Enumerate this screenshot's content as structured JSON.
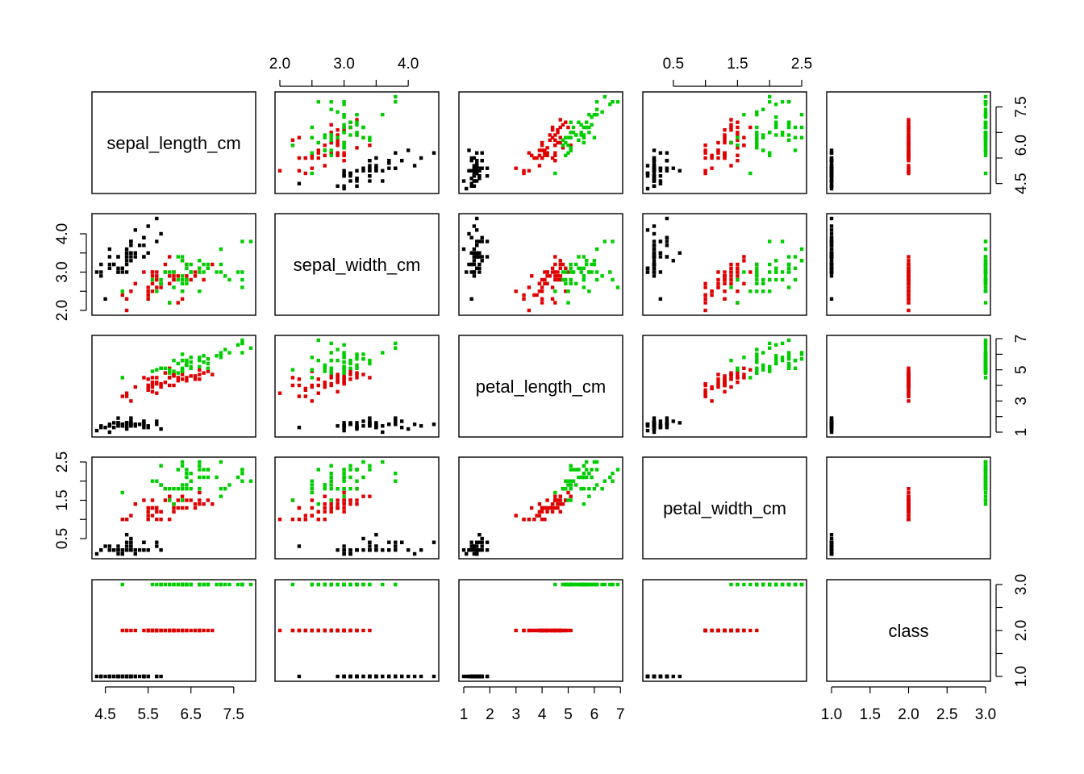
{
  "chart_data": {
    "type": "scatter",
    "chart_kind": "scatterplot-matrix",
    "variables": [
      "sepal_length_cm",
      "sepal_width_cm",
      "petal_length_cm",
      "petal_width_cm",
      "class"
    ],
    "groups": [
      {
        "class_value": 1,
        "color": "#000000"
      },
      {
        "class_value": 2,
        "color": "#DF0000"
      },
      {
        "class_value": 3,
        "color": "#00CD00"
      }
    ],
    "axis_ranges": {
      "sepal_length_cm": [
        4.3,
        7.9
      ],
      "sepal_width_cm": [
        2.0,
        4.4
      ],
      "petal_length_cm": [
        1.0,
        6.9
      ],
      "petal_width_cm": [
        0.1,
        2.5
      ],
      "class": [
        1.0,
        3.0
      ]
    },
    "tick_values": {
      "sepal_length_cm": [
        4.5,
        5.5,
        6.5,
        7.5
      ],
      "sepal_width_cm": [
        2.0,
        2.5,
        3.0,
        3.5,
        4.0
      ],
      "petal_length_cm": [
        1,
        2,
        3,
        4,
        5,
        6,
        7
      ],
      "petal_width_cm": [
        0.5,
        1.0,
        1.5,
        2.0,
        2.5
      ],
      "class": [
        1.0,
        1.5,
        2.0,
        2.5,
        3.0
      ]
    },
    "tick_labels": {
      "sepal_length_cm": {
        "bottom": [
          "4.5",
          "5.5",
          "6.5",
          "7.5"
        ],
        "right": [
          "4.5",
          "6.0",
          "7.5"
        ],
        "right_values": [
          4.5,
          6.0,
          7.5
        ]
      },
      "sepal_width_cm": {
        "top": [
          "2.0",
          "3.0",
          "4.0"
        ],
        "top_values": [
          2.0,
          3.0,
          4.0
        ],
        "left": [
          "2.0",
          "3.0",
          "4.0"
        ],
        "left_values": [
          2.0,
          3.0,
          4.0
        ]
      },
      "petal_length_cm": {
        "bottom": [
          "1",
          "2",
          "3",
          "4",
          "5",
          "6",
          "7"
        ],
        "right": [
          "1",
          "3",
          "5",
          "7"
        ],
        "right_values": [
          1,
          3,
          5,
          7
        ]
      },
      "petal_width_cm": {
        "top": [
          "0.5",
          "1.5",
          "2.5"
        ],
        "top_values": [
          0.5,
          1.5,
          2.5
        ],
        "left": [
          "0.5",
          "1.5",
          "2.5"
        ],
        "left_values": [
          0.5,
          1.5,
          2.5
        ]
      },
      "class": {
        "bottom": [
          "1.0",
          "1.5",
          "2.0",
          "2.5",
          "3.0"
        ],
        "right": [
          "1.0",
          "2.0",
          "3.0"
        ],
        "right_values": [
          1.0,
          2.0,
          3.0
        ]
      }
    },
    "records": [
      [
        5.1,
        3.5,
        1.4,
        0.2,
        1
      ],
      [
        4.9,
        3.0,
        1.4,
        0.2,
        1
      ],
      [
        4.7,
        3.2,
        1.3,
        0.2,
        1
      ],
      [
        4.6,
        3.1,
        1.5,
        0.2,
        1
      ],
      [
        5.0,
        3.6,
        1.4,
        0.2,
        1
      ],
      [
        5.4,
        3.9,
        1.7,
        0.4,
        1
      ],
      [
        4.6,
        3.4,
        1.4,
        0.3,
        1
      ],
      [
        5.0,
        3.4,
        1.5,
        0.2,
        1
      ],
      [
        4.4,
        2.9,
        1.4,
        0.2,
        1
      ],
      [
        4.9,
        3.1,
        1.5,
        0.1,
        1
      ],
      [
        5.4,
        3.7,
        1.5,
        0.2,
        1
      ],
      [
        4.8,
        3.4,
        1.6,
        0.2,
        1
      ],
      [
        4.8,
        3.0,
        1.4,
        0.1,
        1
      ],
      [
        4.3,
        3.0,
        1.1,
        0.1,
        1
      ],
      [
        5.8,
        4.0,
        1.2,
        0.2,
        1
      ],
      [
        5.7,
        4.4,
        1.5,
        0.4,
        1
      ],
      [
        5.4,
        3.9,
        1.3,
        0.4,
        1
      ],
      [
        5.1,
        3.5,
        1.4,
        0.3,
        1
      ],
      [
        5.7,
        3.8,
        1.7,
        0.3,
        1
      ],
      [
        5.1,
        3.8,
        1.5,
        0.3,
        1
      ],
      [
        5.4,
        3.4,
        1.7,
        0.2,
        1
      ],
      [
        5.1,
        3.7,
        1.5,
        0.4,
        1
      ],
      [
        4.6,
        3.6,
        1.0,
        0.2,
        1
      ],
      [
        5.1,
        3.3,
        1.7,
        0.5,
        1
      ],
      [
        4.8,
        3.4,
        1.9,
        0.2,
        1
      ],
      [
        5.0,
        3.0,
        1.6,
        0.2,
        1
      ],
      [
        5.0,
        3.4,
        1.6,
        0.4,
        1
      ],
      [
        5.2,
        3.5,
        1.5,
        0.2,
        1
      ],
      [
        5.2,
        3.4,
        1.4,
        0.2,
        1
      ],
      [
        4.7,
        3.2,
        1.6,
        0.2,
        1
      ],
      [
        4.8,
        3.1,
        1.6,
        0.2,
        1
      ],
      [
        5.4,
        3.4,
        1.5,
        0.4,
        1
      ],
      [
        5.2,
        4.1,
        1.5,
        0.1,
        1
      ],
      [
        5.5,
        4.2,
        1.4,
        0.2,
        1
      ],
      [
        4.9,
        3.1,
        1.5,
        0.1,
        1
      ],
      [
        5.0,
        3.2,
        1.2,
        0.2,
        1
      ],
      [
        5.5,
        3.5,
        1.3,
        0.2,
        1
      ],
      [
        4.9,
        3.1,
        1.5,
        0.1,
        1
      ],
      [
        4.4,
        3.0,
        1.3,
        0.2,
        1
      ],
      [
        5.1,
        3.4,
        1.5,
        0.2,
        1
      ],
      [
        5.0,
        3.5,
        1.3,
        0.3,
        1
      ],
      [
        4.5,
        2.3,
        1.3,
        0.3,
        1
      ],
      [
        4.4,
        3.2,
        1.3,
        0.2,
        1
      ],
      [
        5.0,
        3.5,
        1.6,
        0.6,
        1
      ],
      [
        5.1,
        3.8,
        1.9,
        0.4,
        1
      ],
      [
        4.8,
        3.0,
        1.4,
        0.3,
        1
      ],
      [
        5.1,
        3.8,
        1.6,
        0.2,
        1
      ],
      [
        4.6,
        3.2,
        1.4,
        0.2,
        1
      ],
      [
        5.3,
        3.7,
        1.5,
        0.2,
        1
      ],
      [
        5.0,
        3.3,
        1.4,
        0.2,
        1
      ],
      [
        7.0,
        3.2,
        4.7,
        1.4,
        2
      ],
      [
        6.4,
        3.2,
        4.5,
        1.5,
        2
      ],
      [
        6.9,
        3.1,
        4.9,
        1.5,
        2
      ],
      [
        5.5,
        2.3,
        4.0,
        1.3,
        2
      ],
      [
        6.5,
        2.8,
        4.6,
        1.5,
        2
      ],
      [
        5.7,
        2.8,
        4.5,
        1.3,
        2
      ],
      [
        6.3,
        3.3,
        4.7,
        1.6,
        2
      ],
      [
        4.9,
        2.4,
        3.3,
        1.0,
        2
      ],
      [
        6.6,
        2.9,
        4.6,
        1.3,
        2
      ],
      [
        5.2,
        2.7,
        3.9,
        1.4,
        2
      ],
      [
        5.0,
        2.0,
        3.5,
        1.0,
        2
      ],
      [
        5.9,
        3.0,
        4.2,
        1.5,
        2
      ],
      [
        6.0,
        2.2,
        4.0,
        1.0,
        2
      ],
      [
        6.1,
        2.9,
        4.7,
        1.4,
        2
      ],
      [
        5.6,
        2.9,
        3.6,
        1.3,
        2
      ],
      [
        6.7,
        3.1,
        4.4,
        1.4,
        2
      ],
      [
        5.6,
        3.0,
        4.5,
        1.5,
        2
      ],
      [
        5.8,
        2.7,
        4.1,
        1.0,
        2
      ],
      [
        6.2,
        2.2,
        4.5,
        1.5,
        2
      ],
      [
        5.6,
        2.5,
        3.9,
        1.1,
        2
      ],
      [
        5.9,
        3.2,
        4.8,
        1.8,
        2
      ],
      [
        6.1,
        2.8,
        4.0,
        1.3,
        2
      ],
      [
        6.3,
        2.5,
        4.9,
        1.5,
        2
      ],
      [
        6.1,
        2.8,
        4.7,
        1.2,
        2
      ],
      [
        6.4,
        2.9,
        4.3,
        1.3,
        2
      ],
      [
        6.6,
        3.0,
        4.4,
        1.4,
        2
      ],
      [
        6.8,
        2.8,
        4.8,
        1.4,
        2
      ],
      [
        6.7,
        3.0,
        5.0,
        1.7,
        2
      ],
      [
        6.0,
        2.9,
        4.5,
        1.5,
        2
      ],
      [
        5.7,
        2.6,
        3.5,
        1.0,
        2
      ],
      [
        5.5,
        2.4,
        3.8,
        1.1,
        2
      ],
      [
        5.5,
        2.4,
        3.7,
        1.0,
        2
      ],
      [
        5.8,
        2.7,
        3.9,
        1.2,
        2
      ],
      [
        6.0,
        2.7,
        5.1,
        1.6,
        2
      ],
      [
        5.4,
        3.0,
        4.5,
        1.5,
        2
      ],
      [
        6.0,
        3.4,
        4.5,
        1.6,
        2
      ],
      [
        6.7,
        3.1,
        4.7,
        1.5,
        2
      ],
      [
        6.3,
        2.3,
        4.4,
        1.3,
        2
      ],
      [
        5.6,
        3.0,
        4.1,
        1.3,
        2
      ],
      [
        5.5,
        2.5,
        4.0,
        1.3,
        2
      ],
      [
        5.5,
        2.6,
        4.4,
        1.2,
        2
      ],
      [
        6.1,
        3.0,
        4.6,
        1.4,
        2
      ],
      [
        5.8,
        2.6,
        4.0,
        1.2,
        2
      ],
      [
        5.0,
        2.3,
        3.3,
        1.0,
        2
      ],
      [
        5.6,
        2.7,
        4.2,
        1.3,
        2
      ],
      [
        5.7,
        3.0,
        4.2,
        1.2,
        2
      ],
      [
        5.7,
        2.9,
        4.2,
        1.3,
        2
      ],
      [
        6.2,
        2.9,
        4.3,
        1.3,
        2
      ],
      [
        5.1,
        2.5,
        3.0,
        1.1,
        2
      ],
      [
        5.7,
        2.8,
        4.1,
        1.3,
        2
      ],
      [
        6.3,
        3.3,
        6.0,
        2.5,
        3
      ],
      [
        5.8,
        2.7,
        5.1,
        1.9,
        3
      ],
      [
        7.1,
        3.0,
        5.9,
        2.1,
        3
      ],
      [
        6.3,
        2.9,
        5.6,
        1.8,
        3
      ],
      [
        6.5,
        3.0,
        5.8,
        2.2,
        3
      ],
      [
        7.6,
        3.0,
        6.6,
        2.1,
        3
      ],
      [
        4.9,
        2.5,
        4.5,
        1.7,
        3
      ],
      [
        7.3,
        2.9,
        6.3,
        1.8,
        3
      ],
      [
        6.7,
        2.5,
        5.8,
        1.8,
        3
      ],
      [
        7.2,
        3.6,
        6.1,
        2.5,
        3
      ],
      [
        6.5,
        3.2,
        5.1,
        2.0,
        3
      ],
      [
        6.4,
        2.7,
        5.3,
        1.9,
        3
      ],
      [
        6.8,
        3.0,
        5.5,
        2.1,
        3
      ],
      [
        5.7,
        2.5,
        5.0,
        2.0,
        3
      ],
      [
        5.8,
        2.8,
        5.1,
        2.4,
        3
      ],
      [
        6.4,
        3.2,
        5.3,
        2.3,
        3
      ],
      [
        6.5,
        3.0,
        5.5,
        1.8,
        3
      ],
      [
        7.7,
        3.8,
        6.7,
        2.2,
        3
      ],
      [
        7.7,
        2.6,
        6.9,
        2.3,
        3
      ],
      [
        6.0,
        2.2,
        5.0,
        1.5,
        3
      ],
      [
        6.9,
        3.2,
        5.7,
        2.3,
        3
      ],
      [
        5.6,
        2.8,
        4.9,
        2.0,
        3
      ],
      [
        7.7,
        2.8,
        6.7,
        2.0,
        3
      ],
      [
        6.3,
        2.7,
        4.9,
        1.8,
        3
      ],
      [
        6.7,
        3.3,
        5.7,
        2.1,
        3
      ],
      [
        7.2,
        3.2,
        6.0,
        1.8,
        3
      ],
      [
        6.2,
        2.8,
        4.8,
        1.8,
        3
      ],
      [
        6.1,
        3.0,
        4.9,
        1.8,
        3
      ],
      [
        6.4,
        2.8,
        5.6,
        2.1,
        3
      ],
      [
        7.2,
        3.0,
        5.8,
        1.6,
        3
      ],
      [
        7.4,
        2.8,
        6.1,
        1.9,
        3
      ],
      [
        7.9,
        3.8,
        6.4,
        2.0,
        3
      ],
      [
        6.4,
        2.8,
        5.6,
        2.2,
        3
      ],
      [
        6.3,
        2.8,
        5.1,
        1.5,
        3
      ],
      [
        6.1,
        2.6,
        5.6,
        1.4,
        3
      ],
      [
        7.7,
        3.0,
        6.1,
        2.3,
        3
      ],
      [
        6.3,
        3.4,
        5.6,
        2.4,
        3
      ],
      [
        6.4,
        3.1,
        5.5,
        1.8,
        3
      ],
      [
        6.0,
        3.0,
        4.8,
        1.8,
        3
      ],
      [
        6.9,
        3.1,
        5.4,
        2.1,
        3
      ],
      [
        6.7,
        3.1,
        5.6,
        2.4,
        3
      ],
      [
        6.9,
        3.1,
        5.1,
        2.3,
        3
      ],
      [
        5.8,
        2.7,
        5.1,
        1.9,
        3
      ],
      [
        6.8,
        3.2,
        5.9,
        2.3,
        3
      ],
      [
        6.7,
        3.3,
        5.7,
        2.5,
        3
      ],
      [
        6.7,
        3.0,
        5.2,
        2.3,
        3
      ],
      [
        6.3,
        2.5,
        5.0,
        1.9,
        3
      ],
      [
        6.5,
        3.0,
        5.2,
        2.0,
        3
      ],
      [
        6.2,
        3.4,
        5.4,
        2.3,
        3
      ],
      [
        5.9,
        3.0,
        5.1,
        1.8,
        3
      ]
    ]
  }
}
